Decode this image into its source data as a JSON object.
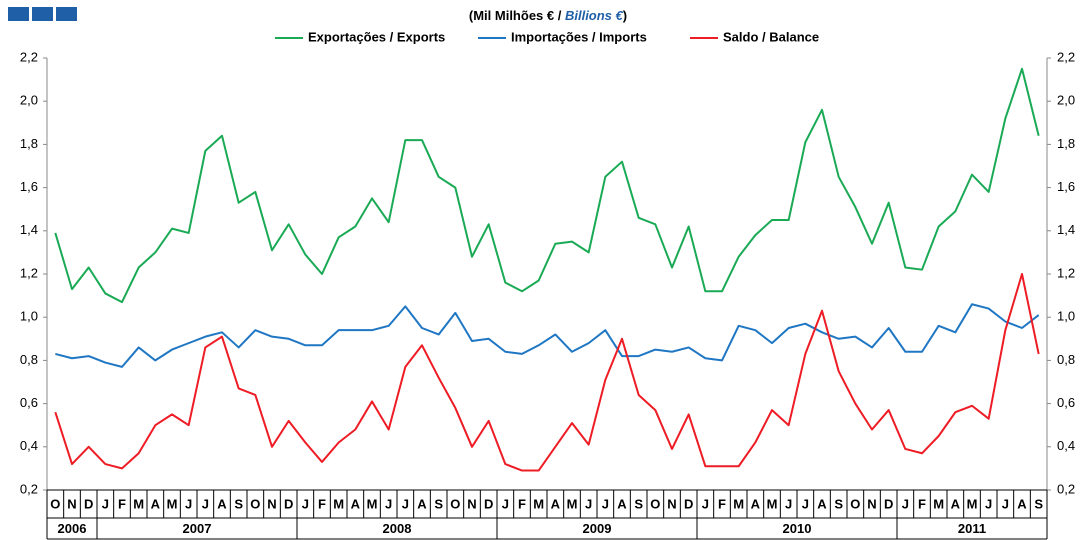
{
  "chart_data": {
    "type": "line",
    "title_parts": [
      "(Mil Milhões € / ",
      "Billions €",
      ")"
    ],
    "categories": [
      "O",
      "N",
      "D",
      "J",
      "F",
      "M",
      "A",
      "M",
      "J",
      "J",
      "A",
      "S",
      "O",
      "N",
      "D",
      "J",
      "F",
      "M",
      "A",
      "M",
      "J",
      "J",
      "A",
      "S",
      "O",
      "N",
      "D",
      "J",
      "F",
      "M",
      "A",
      "M",
      "J",
      "J",
      "A",
      "S",
      "O",
      "N",
      "D",
      "J",
      "F",
      "M",
      "A",
      "M",
      "J",
      "J",
      "A",
      "S",
      "O",
      "N",
      "D",
      "J",
      "F",
      "M",
      "A",
      "M",
      "J",
      "J",
      "A",
      "S"
    ],
    "year_groups": [
      {
        "label": "2006",
        "count": 3
      },
      {
        "label": "2007",
        "count": 12
      },
      {
        "label": "2008",
        "count": 12
      },
      {
        "label": "2009",
        "count": 12
      },
      {
        "label": "2010",
        "count": 12
      },
      {
        "label": "2011",
        "count": 9
      }
    ],
    "series": [
      {
        "name": "Exportações / Exports",
        "color": "#1aaa55",
        "values": [
          1.39,
          1.13,
          1.23,
          1.11,
          1.07,
          1.23,
          1.3,
          1.41,
          1.39,
          1.77,
          1.84,
          1.53,
          1.58,
          1.31,
          1.43,
          1.29,
          1.2,
          1.37,
          1.42,
          1.55,
          1.44,
          1.82,
          1.82,
          1.65,
          1.6,
          1.28,
          1.43,
          1.16,
          1.12,
          1.17,
          1.34,
          1.35,
          1.3,
          1.65,
          1.72,
          1.46,
          1.43,
          1.23,
          1.42,
          1.12,
          1.12,
          1.28,
          1.38,
          1.45,
          1.45,
          1.81,
          1.96,
          1.65,
          1.51,
          1.34,
          1.53,
          1.23,
          1.22,
          1.42,
          1.49,
          1.66,
          1.58,
          1.92,
          2.15,
          1.84
        ]
      },
      {
        "name": "Importações / Imports",
        "color": "#1f77c4",
        "values": [
          0.83,
          0.81,
          0.82,
          0.79,
          0.77,
          0.86,
          0.8,
          0.85,
          0.88,
          0.91,
          0.93,
          0.86,
          0.94,
          0.91,
          0.9,
          0.87,
          0.87,
          0.94,
          0.94,
          0.94,
          0.96,
          1.05,
          0.95,
          0.92,
          1.02,
          0.89,
          0.9,
          0.84,
          0.83,
          0.87,
          0.92,
          0.84,
          0.88,
          0.94,
          0.82,
          0.82,
          0.85,
          0.84,
          0.86,
          0.81,
          0.8,
          0.96,
          0.94,
          0.88,
          0.95,
          0.97,
          0.93,
          0.9,
          0.91,
          0.86,
          0.95,
          0.84,
          0.84,
          0.96,
          0.93,
          1.06,
          1.04,
          0.98,
          0.95,
          1.01
        ]
      },
      {
        "name": "Saldo / Balance",
        "color": "#ee1c25",
        "values": [
          0.56,
          0.32,
          0.4,
          0.32,
          0.3,
          0.37,
          0.5,
          0.55,
          0.5,
          0.86,
          0.91,
          0.67,
          0.64,
          0.4,
          0.52,
          0.42,
          0.33,
          0.42,
          0.48,
          0.61,
          0.48,
          0.77,
          0.87,
          0.72,
          0.58,
          0.4,
          0.52,
          0.32,
          0.29,
          0.29,
          0.4,
          0.51,
          0.41,
          0.71,
          0.9,
          0.64,
          0.57,
          0.39,
          0.55,
          0.31,
          0.31,
          0.31,
          0.42,
          0.57,
          0.5,
          0.83,
          1.03,
          0.75,
          0.6,
          0.48,
          0.57,
          0.39,
          0.37,
          0.45,
          0.56,
          0.59,
          0.53,
          0.94,
          1.2,
          0.83
        ]
      }
    ],
    "ylim": [
      0.2,
      2.2
    ],
    "yticks": [
      {
        "value": 0.2,
        "label": "0,2"
      },
      {
        "value": 0.4,
        "label": "0,4"
      },
      {
        "value": 0.6,
        "label": "0,6"
      },
      {
        "value": 0.8,
        "label": "0,8"
      },
      {
        "value": 1.0,
        "label": "1,0"
      },
      {
        "value": 1.2,
        "label": "1,2"
      },
      {
        "value": 1.4,
        "label": "1,4"
      },
      {
        "value": 1.6,
        "label": "1,6"
      },
      {
        "value": 1.8,
        "label": "1,8"
      },
      {
        "value": 2.0,
        "label": "2,0"
      },
      {
        "value": 2.2,
        "label": "2,2"
      }
    ],
    "y2lim": [
      0.2,
      2.2
    ],
    "y2ticks": [
      {
        "value": 0.2,
        "label": "0,2"
      },
      {
        "value": 0.4,
        "label": "0,4"
      },
      {
        "value": 0.6,
        "label": "0,6"
      },
      {
        "value": 0.8,
        "label": "0,8"
      },
      {
        "value": 1.0,
        "label": "1,0"
      },
      {
        "value": 1.2,
        "label": "1,2"
      },
      {
        "value": 1.4,
        "label": "1,4"
      },
      {
        "value": 1.6,
        "label": "1,6"
      },
      {
        "value": 1.8,
        "label": "1,8"
      },
      {
        "value": 2.0,
        "label": "2,0"
      },
      {
        "value": 2.2,
        "label": "2,2"
      }
    ],
    "grid": false,
    "legend": "top"
  }
}
